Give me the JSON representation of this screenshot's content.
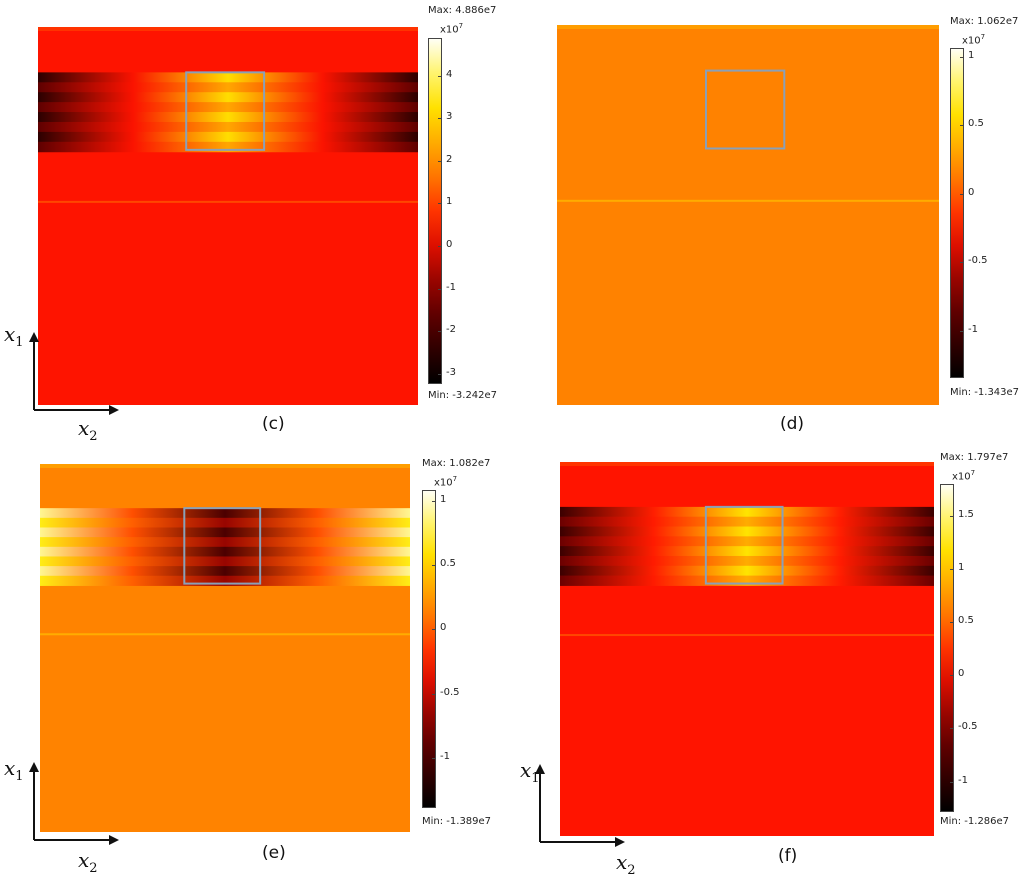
{
  "chart_data": [
    {
      "type": "heatmap",
      "caption": "(c)",
      "colorbar": {
        "max_label": "Max: 4.886e7",
        "min_label": "Min: -3.242e7",
        "exponent_base": "x10",
        "exponent": "7",
        "ticks": [
          "4",
          "3",
          "2",
          "1",
          "0",
          "-1",
          "-2",
          "-3"
        ],
        "range": [
          -3.242,
          4.886
        ]
      },
      "axes_shown": true,
      "xlabel": "x",
      "xlabel_sub": "2",
      "ylabel": "x",
      "ylabel_sub": "1",
      "background_value": 0.4,
      "band": {
        "peak_value": 3.2,
        "edge_value": -2.5,
        "pattern": "center-high"
      }
    },
    {
      "type": "heatmap",
      "caption": "(d)",
      "colorbar": {
        "max_label": "Max: 1.062e7",
        "min_label": "Min: -1.343e7",
        "exponent_base": "x10",
        "exponent": "7",
        "ticks": [
          "1",
          "0.5",
          "0",
          "-0.5",
          "-1"
        ],
        "range": [
          -1.343,
          1.062
        ]
      },
      "axes_shown": false,
      "background_value": 0.15,
      "band": {
        "peak_value": 0.15,
        "edge_value": 0.15,
        "pattern": "uniform"
      }
    },
    {
      "type": "heatmap",
      "caption": "(e)",
      "colorbar": {
        "max_label": "Max: 1.082e7",
        "min_label": "Min: -1.389e7",
        "exponent_base": "x10",
        "exponent": "7",
        "ticks": [
          "1",
          "0.5",
          "0",
          "-0.5",
          "-1"
        ],
        "range": [
          -1.389,
          1.082
        ]
      },
      "axes_shown": true,
      "xlabel": "x",
      "xlabel_sub": "2",
      "ylabel": "x",
      "ylabel_sub": "1",
      "background_value": 0.15,
      "band": {
        "peak_value": -1.0,
        "edge_value": 0.9,
        "pattern": "center-low"
      }
    },
    {
      "type": "heatmap",
      "caption": "(f)",
      "colorbar": {
        "max_label": "Max: 1.797e7",
        "min_label": "Min: -1.286e7",
        "exponent_base": "x10",
        "exponent": "7",
        "ticks": [
          "1.5",
          "1",
          "0.5",
          "0",
          "-0.5",
          "-1"
        ],
        "range": [
          -1.286,
          1.797
        ]
      },
      "axes_shown": true,
      "xlabel": "x",
      "xlabel_sub": "2",
      "ylabel": "x",
      "ylabel_sub": "1",
      "background_value": 0.1,
      "band": {
        "peak_value": 1.2,
        "edge_value": -0.9,
        "pattern": "center-high"
      }
    }
  ]
}
